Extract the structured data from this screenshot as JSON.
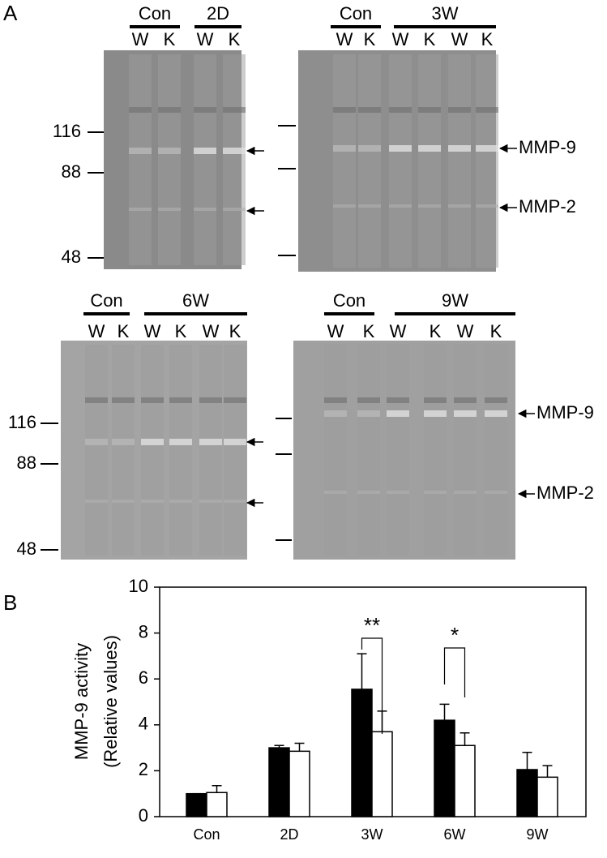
{
  "panel_labels": [
    "A",
    "B"
  ],
  "gels": [
    {
      "groups": [
        {
          "label": "Con",
          "lanes": [
            "W",
            "K"
          ]
        },
        {
          "label": "2D",
          "lanes": [
            "W",
            "K"
          ]
        }
      ],
      "markers": [
        "116",
        "88",
        "48"
      ]
    },
    {
      "groups": [
        {
          "label": "Con",
          "lanes": [
            "W",
            "K"
          ]
        },
        {
          "label": "3W",
          "lanes": [
            "W",
            "K",
            "W",
            "K"
          ]
        }
      ],
      "bands": [
        "MMP-9",
        "MMP-2"
      ]
    },
    {
      "groups": [
        {
          "label": "Con",
          "lanes": [
            "W",
            "K"
          ]
        },
        {
          "label": "6W",
          "lanes": [
            "W",
            "K",
            "W",
            "K"
          ]
        }
      ],
      "markers": [
        "116",
        "88",
        "48"
      ]
    },
    {
      "groups": [
        {
          "label": "Con",
          "lanes": [
            "W",
            "K"
          ]
        },
        {
          "label": "9W",
          "lanes": [
            "W",
            "K",
            "W",
            "K"
          ]
        }
      ],
      "bands": [
        "MMP-9",
        "MMP-2"
      ]
    }
  ],
  "chart_data": {
    "type": "bar",
    "y_label": [
      "MMP-9 activity",
      "(Relative values)"
    ],
    "categories": [
      "Con",
      "2D",
      "3W",
      "6W",
      "9W"
    ],
    "series": [
      {
        "color": "#000000",
        "values": [
          1.0,
          3.0,
          5.55,
          4.2,
          2.05
        ],
        "errors": [
          0.0,
          0.1,
          1.55,
          0.7,
          0.75
        ]
      },
      {
        "color": "#ffffff",
        "values": [
          1.05,
          2.85,
          3.7,
          3.1,
          1.72
        ],
        "errors": [
          0.3,
          0.35,
          0.9,
          0.55,
          0.5
        ]
      }
    ],
    "ylim": [
      0,
      10
    ],
    "yticks": [
      0,
      2,
      4,
      6,
      8,
      10
    ],
    "annotations": [
      "**",
      "*"
    ]
  }
}
